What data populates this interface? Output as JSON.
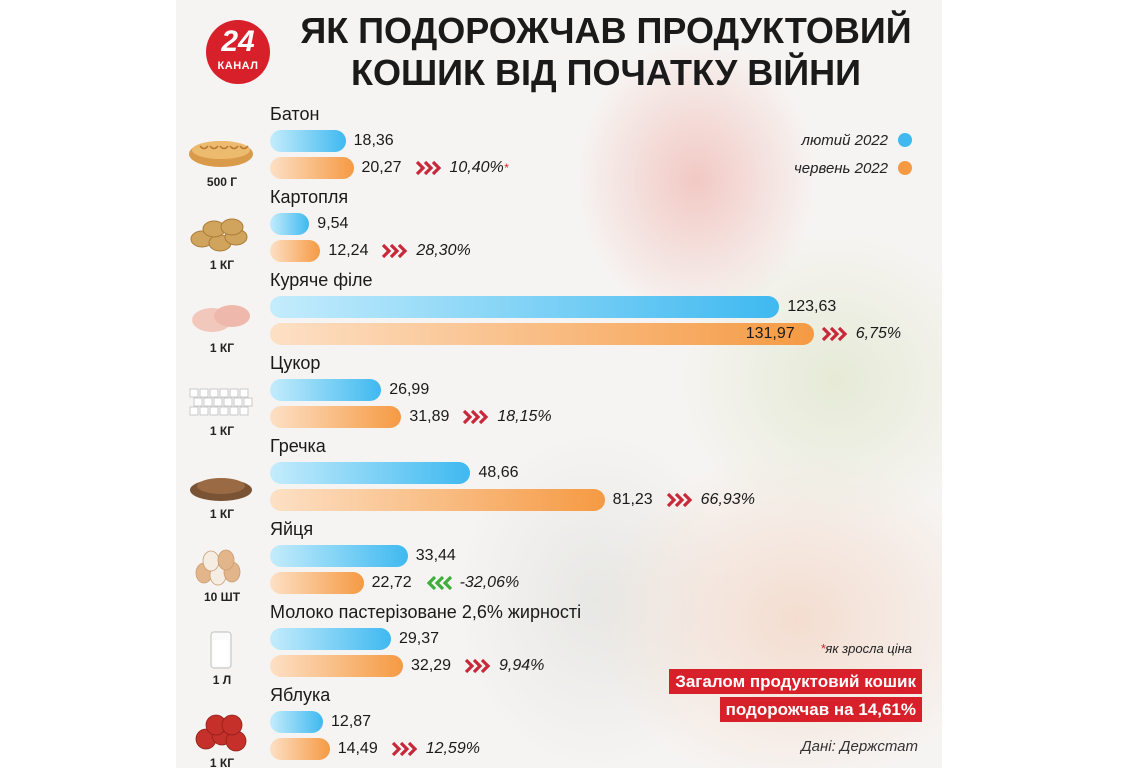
{
  "logo": {
    "number": "24",
    "word": "КАНАЛ"
  },
  "title": {
    "line1": "ЯК ПОДОРОЖЧАВ ПРОДУКТОВИЙ",
    "line2": "КОШИК ВІД ПОЧАТКУ ВІЙНИ"
  },
  "legend": {
    "feb": "лютий 2022",
    "jun": "червень 2022"
  },
  "colors": {
    "feb": "#3fb9f0",
    "jun": "#f59a43",
    "up": "#c8283a",
    "down": "#3fae3a",
    "accent": "#d8202a"
  },
  "note": {
    "star": "*",
    "text": "як зросла ціна"
  },
  "summary": {
    "line1": "Загалом продуктовий кошик",
    "line2": "подорожчав на 14,61%"
  },
  "source": "Дані: Держстат",
  "chart_data": {
    "type": "bar",
    "orientation": "horizontal",
    "title": "ЯК ПОДОРОЖЧАВ ПРОДУКТОВИЙ КОШИК ВІД ПОЧАТКУ ВІЙНИ",
    "series": [
      {
        "name": "лютий 2022",
        "color": "#3fb9f0"
      },
      {
        "name": "червень 2022",
        "color": "#f59a43"
      }
    ],
    "legend_position": "top-right",
    "grid": false,
    "items": [
      {
        "name": "Батон",
        "unit": "500 Г",
        "icon": "bread-icon",
        "feb": 18.36,
        "feb_label": "18,36",
        "jun": 20.27,
        "jun_label": "20,27",
        "change": "10,40%",
        "change_star": "*",
        "direction": "up"
      },
      {
        "name": "Картопля",
        "unit": "1 КГ",
        "icon": "potato-icon",
        "feb": 9.54,
        "feb_label": "9,54",
        "jun": 12.24,
        "jun_label": "12,24",
        "change": "28,30%",
        "change_star": "",
        "direction": "up"
      },
      {
        "name": "Куряче філе",
        "unit": "1 КГ",
        "icon": "chicken-fillet-icon",
        "feb": 123.63,
        "feb_label": "123,63",
        "jun": 131.97,
        "jun_label": "131,97",
        "change": "6,75%",
        "change_star": "",
        "direction": "up"
      },
      {
        "name": "Цукор",
        "unit": "1 КГ",
        "icon": "sugar-icon",
        "feb": 26.99,
        "feb_label": "26,99",
        "jun": 31.89,
        "jun_label": "31,89",
        "change": "18,15%",
        "change_star": "",
        "direction": "up"
      },
      {
        "name": "Гречка",
        "unit": "1 КГ",
        "icon": "buckwheat-icon",
        "feb": 48.66,
        "feb_label": "48,66",
        "jun": 81.23,
        "jun_label": "81,23",
        "change": "66,93%",
        "change_star": "",
        "direction": "up"
      },
      {
        "name": "Яйця",
        "unit": "10 ШТ",
        "icon": "eggs-icon",
        "feb": 33.44,
        "feb_label": "33,44",
        "jun": 22.72,
        "jun_label": "22,72",
        "change": "-32,06%",
        "change_star": "",
        "direction": "down"
      },
      {
        "name": "Молоко пастерізоване 2,6% жирності",
        "unit": "1 Л",
        "icon": "milk-icon",
        "feb": 29.37,
        "feb_label": "29,37",
        "jun": 32.29,
        "jun_label": "32,29",
        "change": "9,94%",
        "change_star": "",
        "direction": "up"
      },
      {
        "name": "Яблука",
        "unit": "1 КГ",
        "icon": "apples-icon",
        "feb": 12.87,
        "feb_label": "12,87",
        "jun": 14.49,
        "jun_label": "14,49",
        "change": "12,59%",
        "change_star": "",
        "direction": "up"
      }
    ]
  }
}
